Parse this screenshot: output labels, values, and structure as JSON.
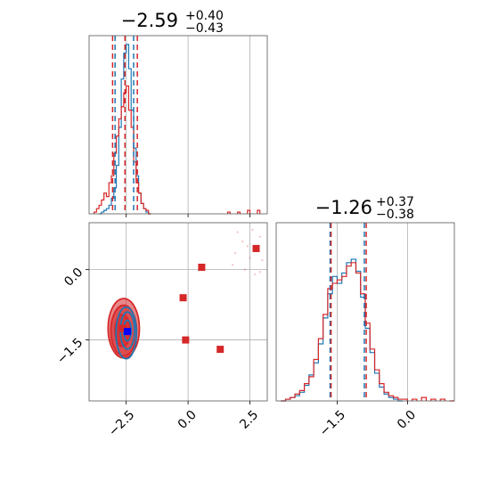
{
  "chart_data": {
    "type": "corner",
    "colors": {
      "blue": "#1f77b4",
      "red": "#d62728",
      "grid": "#b0b0b0"
    },
    "panels": [
      {
        "id": "hist-a",
        "type": "histogram",
        "title": {
          "median": "−2.59",
          "plus": "+0.40",
          "minus": "−0.43"
        },
        "xlim": [
          -4.0,
          3.2
        ],
        "x_gridlines": [
          -2.5,
          0.0,
          2.5
        ],
        "x_ticks": [],
        "series": [
          {
            "name": "",
            "color": "#1f77b4",
            "vlines": [
              -2.95,
              -2.55,
              -2.2
            ],
            "bins": [
              [
                -3.6,
                0
              ],
              [
                -3.5,
                0.01
              ],
              [
                -3.4,
                0.02
              ],
              [
                -3.3,
                0.03
              ],
              [
                -3.2,
                0.05
              ],
              [
                -3.1,
                0.09
              ],
              [
                -3.0,
                0.15
              ],
              [
                -2.9,
                0.28
              ],
              [
                -2.8,
                0.5
              ],
              [
                -2.7,
                0.78
              ],
              [
                -2.6,
                0.93
              ],
              [
                -2.5,
                0.98
              ],
              [
                -2.4,
                0.84
              ],
              [
                -2.3,
                0.6
              ],
              [
                -2.2,
                0.38
              ],
              [
                -2.1,
                0.22
              ],
              [
                -2.0,
                0.12
              ],
              [
                -1.9,
                0.06
              ],
              [
                -1.8,
                0.03
              ],
              [
                -1.7,
                0.01
              ],
              [
                -1.6,
                0.0
              ]
            ]
          },
          {
            "name": "",
            "color": "#d62728",
            "vlines": [
              -3.05,
              -2.55,
              -2.05
            ],
            "bins": [
              [
                -3.8,
                0.01
              ],
              [
                -3.7,
                0.03
              ],
              [
                -3.6,
                0.05
              ],
              [
                -3.5,
                0.08
              ],
              [
                -3.4,
                0.12
              ],
              [
                -3.3,
                0.1
              ],
              [
                -3.2,
                0.18
              ],
              [
                -3.1,
                0.22
              ],
              [
                -3.0,
                0.35
              ],
              [
                -2.9,
                0.45
              ],
              [
                -2.8,
                0.55
              ],
              [
                -2.7,
                0.62
              ],
              [
                -2.6,
                0.7
              ],
              [
                -2.5,
                0.74
              ],
              [
                -2.4,
                0.6
              ],
              [
                -2.3,
                0.5
              ],
              [
                -2.2,
                0.3
              ],
              [
                -2.1,
                0.18
              ],
              [
                -2.0,
                0.12
              ],
              [
                -1.9,
                0.06
              ],
              [
                -1.8,
                0.03
              ],
              [
                -1.7,
                0.02
              ],
              [
                -1.6,
                0.0
              ],
              [
                1.6,
                0.01
              ],
              [
                2.0,
                0.01
              ],
              [
                2.4,
                0.02
              ],
              [
                2.8,
                0.02
              ]
            ]
          }
        ]
      },
      {
        "id": "scatter-ab",
        "type": "2d",
        "xlim": [
          -4.0,
          3.2
        ],
        "ylim": [
          -2.8,
          1.0
        ],
        "x_gridlines": [
          -2.5,
          0.0,
          2.5
        ],
        "y_gridlines": [
          0.0,
          -1.5
        ],
        "x_ticks": [
          "−2.5",
          "0.0",
          "2.5"
        ],
        "x_tick_values": [
          -2.5,
          0.0,
          2.5
        ],
        "y_ticks": [
          "0.0",
          "−1.5"
        ],
        "y_tick_values": [
          0.0,
          -1.5
        ],
        "red_contours": [
          {
            "cx": -2.6,
            "cy": -1.25,
            "rx": 1.15,
            "ry": 1.15,
            "opacity": 0.55
          },
          {
            "cx": -2.6,
            "cy": -1.3,
            "rx": 0.95,
            "ry": 0.98,
            "opacity": 0.6
          },
          {
            "cx": -2.65,
            "cy": -1.3,
            "rx": 0.55,
            "ry": 0.62,
            "opacity": 0.65
          }
        ],
        "blue_contours": [
          {
            "cx": -2.5,
            "cy": -1.35,
            "rx": 0.75,
            "ry": 1.0
          },
          {
            "cx": -2.45,
            "cy": -1.3,
            "rx": 0.52,
            "ry": 0.72
          },
          {
            "cx": -2.45,
            "cy": -1.3,
            "rx": 0.28,
            "ry": 0.4
          }
        ],
        "red_markers": [
          [
            -0.2,
            -0.6
          ],
          [
            0.55,
            0.05
          ],
          [
            2.75,
            0.45
          ],
          [
            -0.1,
            -1.5
          ],
          [
            1.3,
            -1.7
          ],
          [
            -2.65,
            -1.25
          ]
        ],
        "blue_markers": [
          [
            -2.45,
            -1.32
          ]
        ],
        "faint_points": [
          [
            1.9,
            0.35
          ],
          [
            2.2,
            0.6
          ],
          [
            2.5,
            0.25
          ],
          [
            2.9,
            0.7
          ],
          [
            2.0,
            0.8
          ],
          [
            2.7,
            -0.1
          ],
          [
            2.3,
            0.0
          ],
          [
            3.0,
            0.2
          ],
          [
            2.6,
            0.85
          ],
          [
            1.8,
            0.1
          ],
          [
            2.4,
            0.5
          ],
          [
            2.9,
            -0.05
          ]
        ]
      },
      {
        "id": "hist-b",
        "type": "histogram",
        "title": {
          "median": "−1.26",
          "plus": "+0.37",
          "minus": "−0.38"
        },
        "xlim": [
          -2.8,
          1.0
        ],
        "x_gridlines": [
          -1.5,
          0.0
        ],
        "x_ticks": [
          "−1.5",
          "0.0"
        ],
        "x_tick_values": [
          -1.5,
          0.0
        ],
        "series": [
          {
            "name": "",
            "color": "#1f77b4",
            "vlines": [
              -1.65,
              -0.92
            ],
            "bins": [
              [
                -2.7,
                0.0
              ],
              [
                -2.6,
                0.01
              ],
              [
                -2.5,
                0.02
              ],
              [
                -2.4,
                0.03
              ],
              [
                -2.3,
                0.05
              ],
              [
                -2.2,
                0.09
              ],
              [
                -2.1,
                0.15
              ],
              [
                -2.0,
                0.22
              ],
              [
                -1.9,
                0.33
              ],
              [
                -1.8,
                0.48
              ],
              [
                -1.7,
                0.62
              ],
              [
                -1.6,
                0.72
              ],
              [
                -1.5,
                0.68
              ],
              [
                -1.4,
                0.74
              ],
              [
                -1.3,
                0.8
              ],
              [
                -1.2,
                0.82
              ],
              [
                -1.1,
                0.75
              ],
              [
                -1.0,
                0.6
              ],
              [
                -0.9,
                0.42
              ],
              [
                -0.8,
                0.28
              ],
              [
                -0.7,
                0.16
              ],
              [
                -0.6,
                0.08
              ],
              [
                -0.5,
                0.04
              ],
              [
                -0.4,
                0.02
              ],
              [
                -0.3,
                0.01
              ],
              [
                -0.2,
                0.0
              ]
            ]
          },
          {
            "name": "",
            "color": "#d62728",
            "vlines": [
              -1.63,
              -0.88
            ],
            "bins": [
              [
                -2.7,
                0.0
              ],
              [
                -2.6,
                0.01
              ],
              [
                -2.5,
                0.02
              ],
              [
                -2.4,
                0.04
              ],
              [
                -2.3,
                0.06
              ],
              [
                -2.2,
                0.1
              ],
              [
                -2.1,
                0.14
              ],
              [
                -2.0,
                0.24
              ],
              [
                -1.9,
                0.36
              ],
              [
                -1.8,
                0.5
              ],
              [
                -1.7,
                0.65
              ],
              [
                -1.6,
                0.68
              ],
              [
                -1.5,
                0.7
              ],
              [
                -1.4,
                0.72
              ],
              [
                -1.3,
                0.78
              ],
              [
                -1.2,
                0.8
              ],
              [
                -1.1,
                0.74
              ],
              [
                -1.0,
                0.62
              ],
              [
                -0.9,
                0.45
              ],
              [
                -0.8,
                0.3
              ],
              [
                -0.7,
                0.18
              ],
              [
                -0.6,
                0.1
              ],
              [
                -0.5,
                0.05
              ],
              [
                -0.4,
                0.03
              ],
              [
                -0.3,
                0.02
              ],
              [
                -0.2,
                0.01
              ],
              [
                -0.1,
                0.01
              ],
              [
                0.1,
                0.01
              ],
              [
                0.3,
                0.02
              ],
              [
                0.5,
                0.01
              ],
              [
                0.7,
                0.01
              ],
              [
                0.9,
                0.0
              ]
            ]
          }
        ]
      }
    ]
  }
}
